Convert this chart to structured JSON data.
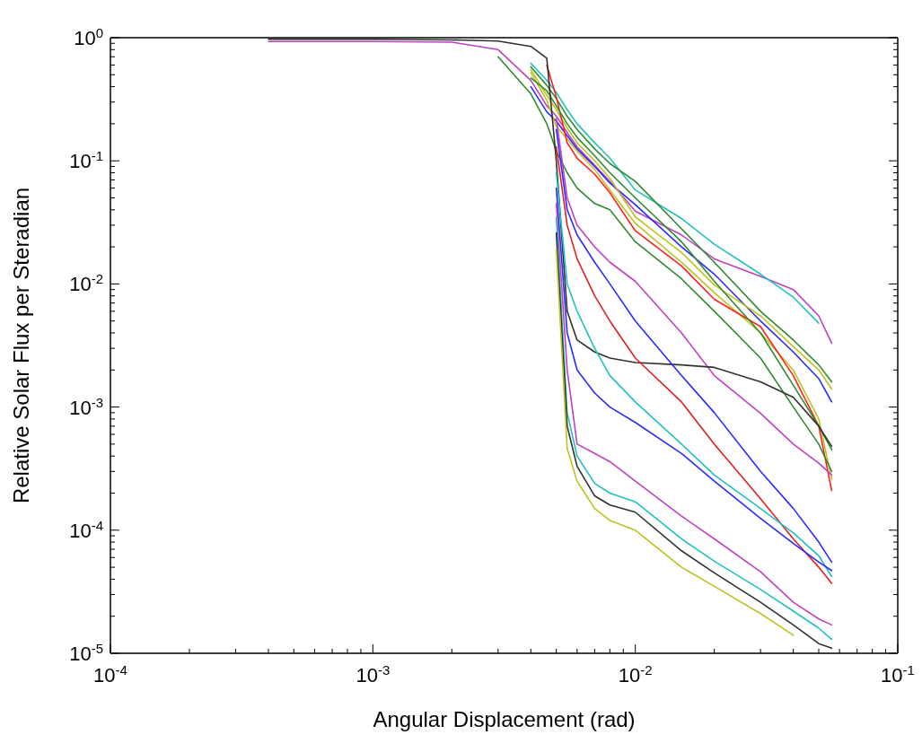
{
  "chart_data": {
    "type": "line",
    "xlabel": "Angular Displacement (rad)",
    "ylabel": "Relative Solar Flux per Steradian",
    "log": "xy",
    "legend": false,
    "grid": false,
    "xlim": [
      0.0001,
      0.1
    ],
    "ylim": [
      1e-05,
      1
    ],
    "xticks": [
      {
        "value": 0.0001,
        "label": "10$^{-4}$"
      },
      {
        "value": 0.0002,
        "label": null
      },
      {
        "value": 0.0003,
        "label": null
      },
      {
        "value": 0.0004,
        "label": null
      },
      {
        "value": 0.0005,
        "label": null
      },
      {
        "value": 0.0006,
        "label": null
      },
      {
        "value": 0.0007,
        "label": null
      },
      {
        "value": 0.0008,
        "label": null
      },
      {
        "value": 0.0009,
        "label": null
      },
      {
        "value": 0.001,
        "label": "10$^{-3}$"
      },
      {
        "value": 0.002,
        "label": null
      },
      {
        "value": 0.003,
        "label": null
      },
      {
        "value": 0.004,
        "label": null
      },
      {
        "value": 0.005,
        "label": null
      },
      {
        "value": 0.006,
        "label": null
      },
      {
        "value": 0.007,
        "label": null
      },
      {
        "value": 0.008,
        "label": null
      },
      {
        "value": 0.009,
        "label": null
      },
      {
        "value": 0.01,
        "label": "10$^{-2}$"
      },
      {
        "value": 0.02,
        "label": null
      },
      {
        "value": 0.03,
        "label": null
      },
      {
        "value": 0.04,
        "label": null
      },
      {
        "value": 0.05,
        "label": null
      },
      {
        "value": 0.06,
        "label": null
      },
      {
        "value": 0.07,
        "label": null
      },
      {
        "value": 0.08,
        "label": null
      },
      {
        "value": 0.09,
        "label": null
      },
      {
        "value": 0.1,
        "label": "10$^{-1}$"
      }
    ],
    "yticks": [
      {
        "value": 1e-05,
        "label": "10$^{-5}$"
      },
      {
        "value": 2e-05,
        "label": null
      },
      {
        "value": 3e-05,
        "label": null
      },
      {
        "value": 4e-05,
        "label": null
      },
      {
        "value": 5e-05,
        "label": null
      },
      {
        "value": 6e-05,
        "label": null
      },
      {
        "value": 7e-05,
        "label": null
      },
      {
        "value": 8e-05,
        "label": null
      },
      {
        "value": 9e-05,
        "label": null
      },
      {
        "value": 0.0001,
        "label": "10$^{-4}$"
      },
      {
        "value": 0.0002,
        "label": null
      },
      {
        "value": 0.0003,
        "label": null
      },
      {
        "value": 0.0004,
        "label": null
      },
      {
        "value": 0.0005,
        "label": null
      },
      {
        "value": 0.0006,
        "label": null
      },
      {
        "value": 0.0007,
        "label": null
      },
      {
        "value": 0.0008,
        "label": null
      },
      {
        "value": 0.0009,
        "label": null
      },
      {
        "value": 0.001,
        "label": "10$^{-3}$"
      },
      {
        "value": 0.002,
        "label": null
      },
      {
        "value": 0.003,
        "label": null
      },
      {
        "value": 0.004,
        "label": null
      },
      {
        "value": 0.005,
        "label": null
      },
      {
        "value": 0.006,
        "label": null
      },
      {
        "value": 0.007,
        "label": null
      },
      {
        "value": 0.008,
        "label": null
      },
      {
        "value": 0.009,
        "label": null
      },
      {
        "value": 0.01,
        "label": "10$^{-2}$"
      },
      {
        "value": 0.02,
        "label": null
      },
      {
        "value": 0.03,
        "label": null
      },
      {
        "value": 0.04,
        "label": null
      },
      {
        "value": 0.05,
        "label": null
      },
      {
        "value": 0.06,
        "label": null
      },
      {
        "value": 0.07,
        "label": null
      },
      {
        "value": 0.08,
        "label": null
      },
      {
        "value": 0.09,
        "label": null
      },
      {
        "value": 0.1,
        "label": "10$^{-1}$"
      },
      {
        "value": 0.2,
        "label": null
      },
      {
        "value": 0.3,
        "label": null
      },
      {
        "value": 0.4,
        "label": null
      },
      {
        "value": 0.5,
        "label": null
      },
      {
        "value": 0.6,
        "label": null
      },
      {
        "value": 0.7,
        "label": null
      },
      {
        "value": 0.8,
        "label": null
      },
      {
        "value": 0.9,
        "label": null
      },
      {
        "value": 1,
        "label": "10$^{0}$"
      }
    ],
    "x": [
      0.0004,
      0.001,
      0.002,
      0.003,
      0.004,
      0.0046,
      0.005,
      0.0055,
      0.006,
      0.007,
      0.008,
      0.01,
      0.015,
      0.02,
      0.03,
      0.04,
      0.05,
      0.056
    ],
    "series": [
      {
        "color": "#c040c0",
        "values": [
          0.93,
          0.93,
          0.92,
          0.8,
          0.45,
          0.28,
          0.23,
          0.17,
          0.13,
          0.092,
          0.068,
          0.039,
          0.025,
          0.016,
          0.0115,
          0.009,
          0.0055,
          0.0033
        ]
      },
      {
        "color": "#20c0c0",
        "values": [
          null,
          null,
          null,
          null,
          0.62,
          0.45,
          0.36,
          0.26,
          0.2,
          0.14,
          0.105,
          0.058,
          0.034,
          0.021,
          0.012,
          0.0078,
          0.0048,
          null
        ]
      },
      {
        "color": "#2e8b2e",
        "values": [
          null,
          null,
          null,
          null,
          0.58,
          0.41,
          0.32,
          0.23,
          0.18,
          0.125,
          0.095,
          0.068,
          0.028,
          0.015,
          0.006,
          0.0035,
          0.0022,
          0.0016
        ]
      },
      {
        "color": "#2a2aff",
        "values": [
          null,
          null,
          null,
          null,
          0.4,
          0.25,
          0.21,
          0.16,
          0.125,
          0.09,
          0.066,
          0.044,
          0.02,
          0.012,
          0.005,
          0.0028,
          0.0017,
          0.0011
        ]
      },
      {
        "color": "#c0c020",
        "values": [
          null,
          null,
          null,
          null,
          0.55,
          0.34,
          0.26,
          0.185,
          0.14,
          0.1,
          0.072,
          0.035,
          0.018,
          0.0098,
          0.0055,
          0.0031,
          0.002,
          0.0014
        ]
      },
      {
        "color": "#c0c020",
        "values": [
          null,
          null,
          null,
          null,
          0.52,
          0.31,
          0.19,
          0.15,
          0.12,
          0.085,
          0.058,
          0.031,
          0.015,
          0.0085,
          0.004,
          0.002,
          0.0008,
          0.00026
        ]
      },
      {
        "color": "#ff2020",
        "values": [
          null,
          null,
          null,
          null,
          null,
          0.6,
          0.33,
          0.14,
          0.105,
          0.078,
          0.055,
          0.027,
          0.014,
          0.0075,
          0.0045,
          0.0018,
          0.0007,
          0.00021
        ]
      },
      {
        "color": "#2e8b2e",
        "values": [
          null,
          null,
          null,
          null,
          0.47,
          0.37,
          0.28,
          0.2,
          0.155,
          0.11,
          0.08,
          0.05,
          0.022,
          0.0105,
          0.004,
          0.0015,
          0.0007,
          0.00045
        ]
      },
      {
        "color": "#2e8b2e",
        "values": [
          null,
          null,
          null,
          0.7,
          0.35,
          0.2,
          0.12,
          0.08,
          0.06,
          0.045,
          0.04,
          0.022,
          0.011,
          0.006,
          0.0025,
          0.001,
          0.0005,
          0.0003
        ]
      },
      {
        "color": "#c040c0",
        "values": [
          null,
          null,
          null,
          null,
          null,
          null,
          0.22,
          0.05,
          0.03,
          0.02,
          0.015,
          0.0105,
          0.004,
          0.0018,
          0.00089,
          0.0005,
          0.00035,
          0.00028
        ]
      },
      {
        "color": "#303030",
        "values": [
          0.97,
          0.97,
          0.96,
          0.94,
          0.85,
          0.68,
          0.1,
          0.006,
          0.0035,
          0.0028,
          0.0025,
          0.0023,
          0.0022,
          0.0021,
          0.0016,
          0.0012,
          0.0007,
          0.00048
        ]
      },
      {
        "color": "#2a2aff",
        "values": [
          null,
          null,
          null,
          null,
          null,
          null,
          0.18,
          0.04,
          0.025,
          0.015,
          0.01,
          0.005,
          0.0018,
          0.0009,
          0.0003,
          0.00015,
          8e-05,
          5.5e-05
        ]
      },
      {
        "color": "#e02020",
        "values": [
          null,
          null,
          null,
          null,
          null,
          null,
          0.13,
          0.03,
          0.016,
          0.008,
          0.005,
          0.0025,
          0.0011,
          0.0005,
          0.00018,
          8.5e-05,
          5e-05,
          3.7e-05
        ]
      },
      {
        "color": "#20c0c0",
        "values": [
          null,
          null,
          null,
          null,
          null,
          null,
          0.08,
          0.01,
          0.006,
          0.003,
          0.0018,
          0.0011,
          0.0005,
          0.00028,
          0.00015,
          9.5e-05,
          6.2e-05,
          4.2e-05
        ]
      },
      {
        "color": "#2a2aff",
        "values": [
          null,
          null,
          null,
          null,
          null,
          null,
          0.06,
          0.004,
          0.002,
          0.0013,
          0.001,
          0.00075,
          0.00042,
          0.00025,
          0.000125,
          7.8e-05,
          5.5e-05,
          4.7e-05
        ]
      },
      {
        "color": "#c040c0",
        "values": [
          null,
          null,
          null,
          null,
          null,
          null,
          0.045,
          0.002,
          0.0005,
          0.00042,
          0.00036,
          0.00025,
          0.00013,
          8.5e-05,
          4.6e-05,
          2.6e-05,
          1.9e-05,
          1.7e-05
        ]
      },
      {
        "color": "#20c0c0",
        "values": [
          null,
          null,
          null,
          null,
          null,
          null,
          0.035,
          0.0009,
          0.0004,
          0.00024,
          0.0002,
          0.00017,
          8.5e-05,
          5.6e-05,
          3.3e-05,
          2.2e-05,
          1.6e-05,
          1.3e-05
        ]
      },
      {
        "color": "#303030",
        "values": [
          null,
          null,
          null,
          null,
          null,
          null,
          0.026,
          0.0007,
          0.00033,
          0.00019,
          0.00016,
          0.00014,
          6.8e-05,
          4.5e-05,
          2.6e-05,
          1.7e-05,
          1.2e-05,
          1.1e-05
        ]
      },
      {
        "color": "#c0c020",
        "values": [
          null,
          null,
          null,
          null,
          null,
          null,
          0.019,
          0.00046,
          0.00025,
          0.00015,
          0.00012,
          0.0001,
          5e-05,
          3.5e-05,
          2.1e-05,
          1.4e-05,
          null,
          null
        ]
      }
    ]
  }
}
